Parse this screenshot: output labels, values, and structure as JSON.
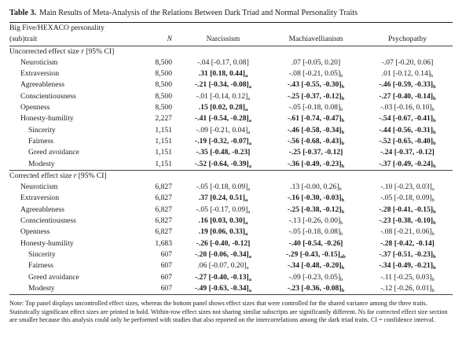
{
  "table": {
    "label": "Table 3.",
    "title": "Main Results of Meta-Analysis of the Relations Between Dark Triad and Normal Personality Traits"
  },
  "header": {
    "trait_line1": "Big Five/HEXACO personality",
    "trait_line2": "(sub)trait",
    "n": "N",
    "narcissism": "Narcissism",
    "machiavellianism": "Machiavellianism",
    "psychopathy": "Psychopathy"
  },
  "sections": [
    {
      "title_pre": "Uncorrected effect size ",
      "title_r": "r",
      "title_post": " [95% CI]",
      "rows": [
        {
          "trait": "Neuroticism",
          "indent": 1,
          "n": "8,500",
          "nar": {
            "text": "-.04 [-0.17, 0.08]",
            "sub": "",
            "bold": false
          },
          "mac": {
            "text": ".07 [-0.05, 0.20]",
            "sub": "",
            "bold": false
          },
          "psy": {
            "text": "-.07 [-0.20, 0.06]",
            "sub": "",
            "bold": false
          }
        },
        {
          "trait": "Extraversion",
          "indent": 1,
          "n": "8,500",
          "nar": {
            "text": ".31 [0.18, 0.44]",
            "sub": "a",
            "bold": true
          },
          "mac": {
            "text": "-.08 [-0.21, 0.05]",
            "sub": "b",
            "bold": false
          },
          "psy": {
            "text": ".01 [-0.12, 0.14]",
            "sub": "b",
            "bold": false
          }
        },
        {
          "trait": "Agreeableness",
          "indent": 1,
          "n": "8,500",
          "nar": {
            "text": "-.21 [-0.34, -0.08]",
            "sub": "a",
            "bold": true
          },
          "mac": {
            "text": "-.43 [-0.55, -0.30]",
            "sub": "b",
            "bold": true
          },
          "psy": {
            "text": "-.46 [-0.59, -0.33]",
            "sub": "b",
            "bold": true
          }
        },
        {
          "trait": "Conscientiousness",
          "indent": 1,
          "n": "8,500",
          "nar": {
            "text": "-.01 [-0.14, 0.12]",
            "sub": "a",
            "bold": false
          },
          "mac": {
            "text": "-.25 [-0.37, -0.12]",
            "sub": "b",
            "bold": true
          },
          "psy": {
            "text": "-.27 [-0.40, -0.14]",
            "sub": "b",
            "bold": true
          }
        },
        {
          "trait": "Openness",
          "indent": 1,
          "n": "8,500",
          "nar": {
            "text": ".15 [0.02, 0.28]",
            "sub": "a",
            "bold": true
          },
          "mac": {
            "text": "-.05 [-0.18, 0.08]",
            "sub": "b",
            "bold": false
          },
          "psy": {
            "text": "-.03 [-0.16, 0.10]",
            "sub": "b",
            "bold": false
          }
        },
        {
          "trait": "Honesty-humility",
          "indent": 1,
          "n": "2,227",
          "nar": {
            "text": "-.41 [-0.54, -0.28]",
            "sub": "a",
            "bold": true
          },
          "mac": {
            "text": "-.61 [-0.74, -0.47]",
            "sub": "b",
            "bold": true
          },
          "psy": {
            "text": "-.54 [-0.67, -0.41]",
            "sub": "b",
            "bold": true
          }
        },
        {
          "trait": "Sincerity",
          "indent": 2,
          "n": "1,151",
          "nar": {
            "text": "-.09 [-0.21, 0.04]",
            "sub": "a",
            "bold": false
          },
          "mac": {
            "text": "-.46 [-0.58, -0.34]",
            "sub": "b",
            "bold": true
          },
          "psy": {
            "text": "-.44 [-0.56, -0.31]",
            "sub": "b",
            "bold": true
          }
        },
        {
          "trait": "Fairness",
          "indent": 2,
          "n": "1,151",
          "nar": {
            "text": "-.19 [-0.32, -0.07]",
            "sub": "a",
            "bold": true
          },
          "mac": {
            "text": "-.56 [-0.68, -0.43]",
            "sub": "b",
            "bold": true
          },
          "psy": {
            "text": "-.52 [-0.65, -0.40]",
            "sub": "b",
            "bold": true
          }
        },
        {
          "trait": "Greed avoidance",
          "indent": 2,
          "n": "1,151",
          "nar": {
            "text": "-.35 [-0.48, -0.23]",
            "sub": "",
            "bold": true
          },
          "mac": {
            "text": "-.25 [-0.37, -0.12]",
            "sub": "",
            "bold": true
          },
          "psy": {
            "text": "-.24 [-0.37, -0.12]",
            "sub": "",
            "bold": true
          }
        },
        {
          "trait": "Modesty",
          "indent": 2,
          "n": "1,151",
          "nar": {
            "text": "-.52 [-0.64, -0.39]",
            "sub": "a",
            "bold": true
          },
          "mac": {
            "text": "-.36 [-0.49, -0.23]",
            "sub": "b",
            "bold": true
          },
          "psy": {
            "text": "-.37 [-0.49, -0.24]",
            "sub": "b",
            "bold": true
          }
        }
      ]
    },
    {
      "title_pre": "Corrected effect size ",
      "title_r": "r",
      "title_post": " [95% CI]",
      "rows": [
        {
          "trait": "Neuroticism",
          "indent": 1,
          "n": "6,827",
          "nar": {
            "text": "-.05 [-0.18, 0.09]",
            "sub": "a",
            "bold": false
          },
          "mac": {
            "text": ".13 [-0.00, 0.26]",
            "sub": "b",
            "bold": false
          },
          "psy": {
            "text": "-.10 [-0.23, 0.03]",
            "sub": "a",
            "bold": false
          }
        },
        {
          "trait": "Extraversion",
          "indent": 1,
          "n": "6,827",
          "nar": {
            "text": ".37 [0.24, 0.51]",
            "sub": "a",
            "bold": true
          },
          "mac": {
            "text": "-.16 [-0.30, -0.03]",
            "sub": "b",
            "bold": true
          },
          "psy": {
            "text": "-.05 [-0.18, 0.09]",
            "sub": "b",
            "bold": false
          }
        },
        {
          "trait": "Agreeableness",
          "indent": 1,
          "n": "6,827",
          "nar": {
            "text": "-.05 [-0.17, 0.09]",
            "sub": "a",
            "bold": false
          },
          "mac": {
            "text": "-.25 [-0.38, -0.12]",
            "sub": "b",
            "bold": true
          },
          "psy": {
            "text": "-.28 [-0.41, -0.15]",
            "sub": "b",
            "bold": true
          }
        },
        {
          "trait": "Conscientiousness",
          "indent": 1,
          "n": "6,827",
          "nar": {
            "text": ".16 [0.03, 0.30]",
            "sub": "a",
            "bold": true
          },
          "mac": {
            "text": "-.13 [-0.26, 0.00]",
            "sub": "b",
            "bold": false
          },
          "psy": {
            "text": "-.23 [-0.38, -0.10]",
            "sub": "b",
            "bold": true
          }
        },
        {
          "trait": "Openness",
          "indent": 1,
          "n": "6,827",
          "nar": {
            "text": ".19 [0.06, 0.33]",
            "sub": "a",
            "bold": true
          },
          "mac": {
            "text": "-.05 [-0.18, 0.08]",
            "sub": "b",
            "bold": false
          },
          "psy": {
            "text": "-.08 [-0.21, 0.06]",
            "sub": "b",
            "bold": false
          }
        },
        {
          "trait": "Honesty-humility",
          "indent": 1,
          "n": "1,683",
          "nar": {
            "text": "-.26 [-0.40, -0.12]",
            "sub": "",
            "bold": true
          },
          "mac": {
            "text": "-.40 [-0.54, -0.26]",
            "sub": "",
            "bold": true
          },
          "psy": {
            "text": "-.28 [-0.42, -0.14]",
            "sub": "",
            "bold": true
          }
        },
        {
          "trait": "Sincerity",
          "indent": 2,
          "n": "607",
          "nar": {
            "text": "-.20 [-0.06, -0.34]",
            "sub": "a",
            "bold": true
          },
          "mac": {
            "text": "-.29 [-0.43, -0.15]",
            "sub": "ab",
            "bold": true
          },
          "psy": {
            "text": "-.37 [-0.51, -0.23]",
            "sub": "b",
            "bold": true
          }
        },
        {
          "trait": "Fairness",
          "indent": 2,
          "n": "607",
          "nar": {
            "text": ".06 [-0.07, 0.20]",
            "sub": "a",
            "bold": false
          },
          "mac": {
            "text": "-.34 [-0.48, -0.20]",
            "sub": "b",
            "bold": true
          },
          "psy": {
            "text": "-.34 [-0.49, -0.21]",
            "sub": "b",
            "bold": true
          }
        },
        {
          "trait": "Greed avoidance",
          "indent": 2,
          "n": "607",
          "nar": {
            "text": "-.27 [-0.40, -0.13]",
            "sub": "a",
            "bold": true
          },
          "mac": {
            "text": "-.09 [-0.23, 0.05]",
            "sub": "b",
            "bold": false
          },
          "psy": {
            "text": "-.11 [-0.25, 0.03]",
            "sub": "b",
            "bold": false
          }
        },
        {
          "trait": "Modesty",
          "indent": 2,
          "n": "607",
          "nar": {
            "text": "-.49 [-0.63, -0.34]",
            "sub": "a",
            "bold": true
          },
          "mac": {
            "text": "-.23 [-0.36, -0.08]",
            "sub": "b",
            "bold": true
          },
          "psy": {
            "text": "-.12 [-0.26, 0.01]",
            "sub": "b",
            "bold": false
          }
        }
      ]
    }
  ],
  "note": "Note: Top panel displays uncontrolled effect sizes, whereas the bottom panel shows effect sizes that were controlled for the shared variance among the three traits. Statistically significant effect sizes are printed in bold. Within-row effect sizes not sharing similar subscripts are significantly different. Ns for corrected effect size section are smaller because this analysis could only be performed with studies that also reported on the intercorrelations among the dark triad traits. CI = confidence interval."
}
